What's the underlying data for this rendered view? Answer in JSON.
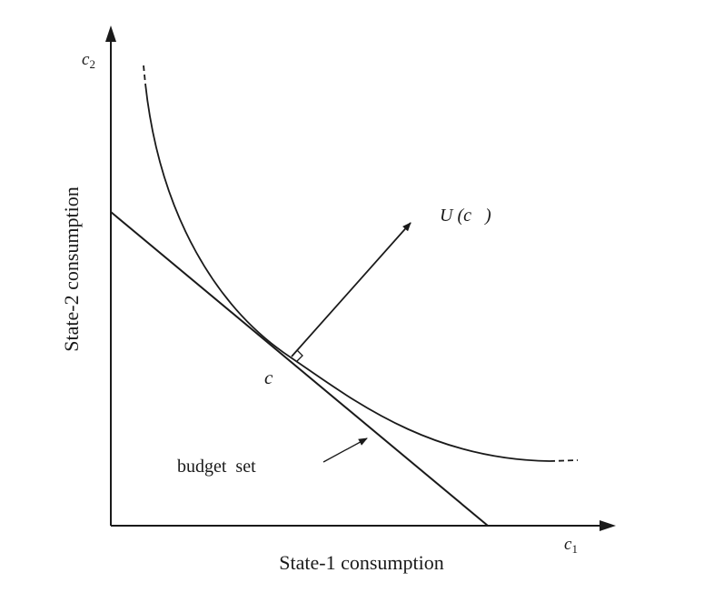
{
  "diagram": {
    "axis_x_symbol_base": "c",
    "axis_x_symbol_sub": "1",
    "axis_y_symbol_base": "c",
    "axis_y_symbol_sub": "2",
    "xlabel": "State-1  consumption",
    "ylabel": "State-2  consumption",
    "point_label": "c",
    "gradient_label": "U (c   )",
    "budget_label": "budget  set"
  }
}
